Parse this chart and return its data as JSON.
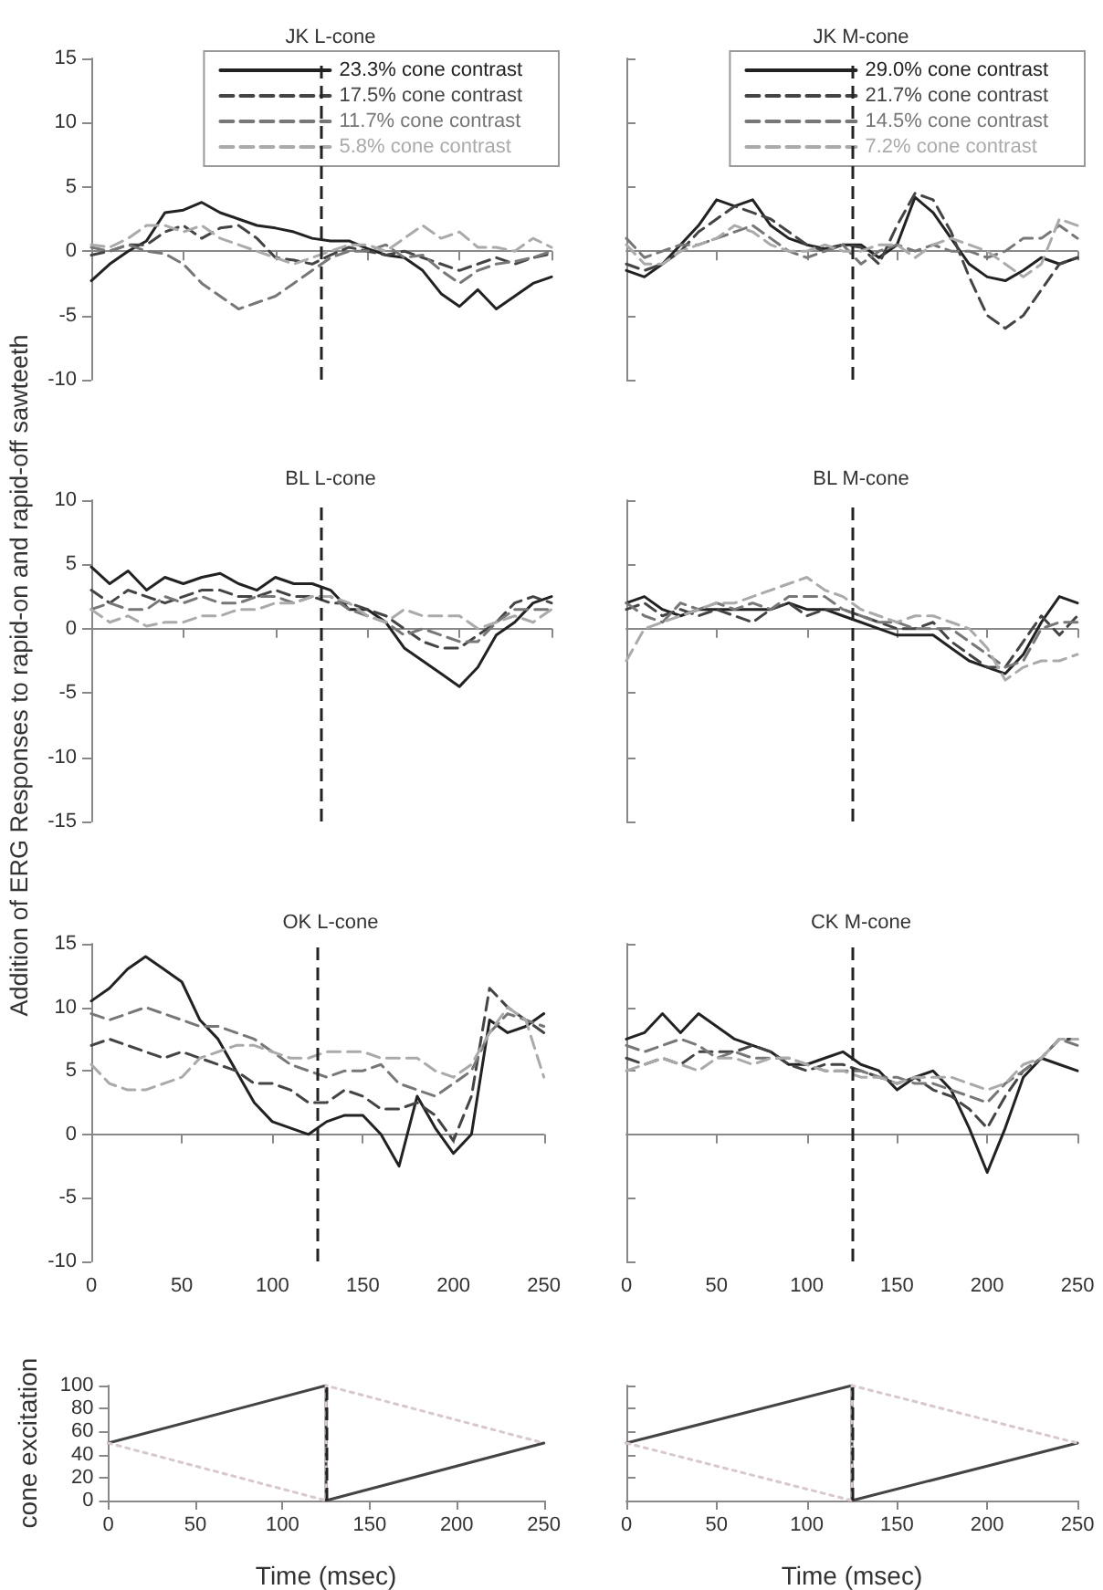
{
  "chart_data": [
    {
      "type": "line",
      "title": "JK L-cone",
      "x": [
        0,
        10,
        20,
        30,
        40,
        50,
        60,
        70,
        80,
        90,
        100,
        110,
        120,
        130,
        140,
        150,
        160,
        170,
        180,
        190,
        200,
        210,
        220,
        230,
        240,
        250
      ],
      "xlim": [
        0,
        250
      ],
      "xticks": [
        0,
        50,
        100,
        150,
        200,
        250
      ],
      "ylim": [
        -10,
        15
      ],
      "yticks": [
        -10,
        -5,
        0,
        5,
        10,
        15
      ],
      "tick_labels": "y",
      "legend": "top right",
      "marker": "none",
      "ref_lines": [
        {
          "axis": "x",
          "value": 125,
          "line_style": "dashed",
          "color": "#222222"
        }
      ],
      "series": [
        {
          "name": "23.3% cone contrast",
          "color": "#222222",
          "line_style": "solid",
          "values": [
            -2.3,
            -1,
            0,
            0.8,
            3,
            3.2,
            3.8,
            3,
            2.5,
            2,
            1.8,
            1.5,
            1,
            0.8,
            0.8,
            0.2,
            -0.3,
            -0.5,
            -1.5,
            -3.3,
            -4.3,
            -3,
            -4.5,
            -3.5,
            -2.5,
            -2
          ]
        },
        {
          "name": "17.5% cone contrast",
          "color": "#444444",
          "line_style": "dashed",
          "values": [
            -0.3,
            0,
            0.5,
            0.5,
            1.5,
            2,
            1,
            1.8,
            2,
            1,
            -0.5,
            -0.7,
            -1,
            -0.3,
            0.3,
            0,
            -0.3,
            0,
            -0.5,
            -1,
            -1.5,
            -1,
            -0.5,
            -1,
            -0.5,
            -0.2
          ]
        },
        {
          "name": "11.7% cone contrast",
          "color": "#777777",
          "line_style": "dashed",
          "values": [
            0.3,
            0,
            0.5,
            0,
            -0.2,
            -1,
            -2.5,
            -3.5,
            -4.5,
            -4,
            -3.5,
            -2.5,
            -1.5,
            -0.5,
            0,
            0,
            0.5,
            -0.5,
            -0.3,
            -1.5,
            -2.5,
            -1.5,
            -1,
            -0.8,
            -0.5,
            0
          ]
        },
        {
          "name": "5.8% cone contrast",
          "color": "#aaaaaa",
          "line_style": "dashed",
          "values": [
            0.5,
            0.3,
            1,
            2,
            2,
            1.5,
            2,
            1,
            0.5,
            0,
            -0.5,
            -1,
            -0.5,
            0,
            0.5,
            0.5,
            0,
            1,
            2,
            1,
            1.5,
            0.3,
            0.3,
            0,
            1,
            0.3
          ]
        }
      ]
    },
    {
      "type": "line",
      "title": "JK M-cone",
      "x": [
        0,
        10,
        20,
        30,
        40,
        50,
        60,
        70,
        80,
        90,
        100,
        110,
        120,
        130,
        140,
        150,
        160,
        170,
        180,
        190,
        200,
        210,
        220,
        230,
        240,
        250
      ],
      "xlim": [
        0,
        250
      ],
      "xticks": [
        0,
        50,
        100,
        150,
        200,
        250
      ],
      "ylim": [
        -10,
        15
      ],
      "yticks": [
        -10,
        -5,
        0,
        5,
        10,
        15
      ],
      "tick_labels": false,
      "legend": "top right",
      "marker": "none",
      "ref_lines": [
        {
          "axis": "x",
          "value": 125,
          "line_style": "dashed",
          "color": "#222222"
        }
      ],
      "series": [
        {
          "name": "29.0% cone contrast",
          "color": "#222222",
          "line_style": "solid",
          "values": [
            -1.5,
            -2,
            -1,
            0.5,
            2,
            4,
            3.5,
            4,
            2,
            1,
            0.5,
            0.2,
            0.5,
            0.5,
            -0.5,
            0.5,
            4.2,
            3,
            1,
            -1,
            -2,
            -2.3,
            -1.5,
            -0.5,
            -1,
            -0.5
          ]
        },
        {
          "name": "21.7% cone contrast",
          "color": "#444444",
          "line_style": "dashed",
          "values": [
            -1,
            -1.5,
            -1,
            0,
            1.5,
            2.5,
            3.5,
            3,
            2.5,
            1.5,
            0.5,
            0,
            0.5,
            0.3,
            -1,
            2,
            4.5,
            4,
            1.5,
            -2,
            -5,
            -6,
            -5,
            -3,
            -1,
            -0.5
          ]
        },
        {
          "name": "14.5% cone contrast",
          "color": "#777777",
          "line_style": "dashed",
          "values": [
            1,
            -0.5,
            0,
            0.5,
            0.5,
            1,
            1.5,
            2,
            1,
            0,
            -0.5,
            0,
            0.5,
            -1,
            0,
            0.5,
            0,
            0.5,
            0,
            0,
            -0.5,
            0,
            1,
            1,
            2,
            1
          ]
        },
        {
          "name": "7.2% cone contrast",
          "color": "#aaaaaa",
          "line_style": "dashed",
          "values": [
            0.5,
            -1,
            -1,
            0,
            0.5,
            1,
            2,
            1.5,
            0.5,
            0,
            0,
            0.5,
            0,
            0,
            0.5,
            0.5,
            -0.5,
            0.5,
            1,
            0.5,
            0,
            -1,
            -2,
            -1,
            2.5,
            2
          ]
        }
      ]
    },
    {
      "type": "line",
      "title": "BL L-cone",
      "ylabel": "Addition of ERG Responses to rapid-on and rapid-off sawteeth",
      "x": [
        0,
        10,
        20,
        30,
        40,
        50,
        60,
        70,
        80,
        90,
        100,
        110,
        120,
        130,
        140,
        150,
        160,
        170,
        180,
        190,
        200,
        210,
        220,
        230,
        240,
        250
      ],
      "xlim": [
        0,
        250
      ],
      "xticks": [
        0,
        50,
        100,
        150,
        200,
        250
      ],
      "ylim": [
        -15,
        10
      ],
      "yticks": [
        -15,
        -10,
        -5,
        0,
        5,
        10
      ],
      "tick_labels": "y",
      "marker": "none",
      "ref_lines": [
        {
          "axis": "x",
          "value": 125,
          "line_style": "dashed",
          "color": "#222222"
        }
      ],
      "series": [
        {
          "color": "#222222",
          "line_style": "solid",
          "values": [
            4.8,
            3.5,
            4.5,
            3,
            4,
            3.5,
            4,
            4.3,
            3.5,
            3,
            4,
            3.5,
            3.5,
            3,
            1.5,
            1.5,
            0.5,
            -1.5,
            -2.5,
            -3.5,
            -4.5,
            -3,
            -0.5,
            0.5,
            2,
            2.5
          ]
        },
        {
          "color": "#444444",
          "line_style": "dashed",
          "values": [
            3,
            2,
            3,
            2.5,
            2,
            2.5,
            3,
            3,
            2.5,
            2.5,
            3,
            2.5,
            2.5,
            2,
            2,
            1.5,
            1,
            0,
            -1,
            -1.5,
            -1.5,
            -0.5,
            0.5,
            2,
            2.5,
            2
          ]
        },
        {
          "color": "#777777",
          "line_style": "dashed",
          "values": [
            1.5,
            2,
            1.5,
            1.5,
            2.5,
            2,
            2.5,
            2,
            2,
            2.5,
            2.5,
            2,
            2.5,
            2.5,
            1.5,
            1,
            0.5,
            -0.5,
            0,
            -0.5,
            -1,
            -1,
            0.5,
            1.5,
            1.5,
            1.5
          ]
        },
        {
          "color": "#aaaaaa",
          "line_style": "dashed",
          "values": [
            1.5,
            0.5,
            1,
            0.2,
            0.5,
            0.5,
            1,
            1,
            1.5,
            1.5,
            2,
            2,
            2.5,
            2.5,
            2,
            1,
            0.5,
            1.5,
            1,
            1,
            1,
            0,
            0.5,
            1,
            0.5,
            1.5
          ]
        }
      ]
    },
    {
      "type": "line",
      "title": "BL M-cone",
      "x": [
        0,
        10,
        20,
        30,
        40,
        50,
        60,
        70,
        80,
        90,
        100,
        110,
        120,
        130,
        140,
        150,
        160,
        170,
        180,
        190,
        200,
        210,
        220,
        230,
        240,
        250
      ],
      "xlim": [
        0,
        250
      ],
      "xticks": [
        0,
        50,
        100,
        150,
        200,
        250
      ],
      "ylim": [
        -15,
        10
      ],
      "yticks": [
        -15,
        -10,
        -5,
        0,
        5,
        10
      ],
      "tick_labels": false,
      "marker": "none",
      "ref_lines": [
        {
          "axis": "x",
          "value": 125,
          "line_style": "dashed",
          "color": "#222222"
        }
      ],
      "series": [
        {
          "color": "#222222",
          "line_style": "solid",
          "values": [
            2,
            2.5,
            1.5,
            1,
            1.5,
            1.5,
            1.5,
            1.5,
            1.5,
            2,
            1.5,
            1.5,
            1,
            0.5,
            0,
            -0.5,
            -0.5,
            -0.5,
            -1.5,
            -2.5,
            -3,
            -3.5,
            -2,
            0.5,
            2.5,
            2
          ]
        },
        {
          "color": "#444444",
          "line_style": "dashed",
          "values": [
            1.5,
            2,
            1,
            1.5,
            1,
            1.5,
            1,
            0.5,
            1.5,
            2,
            1,
            1.5,
            1.5,
            1,
            0.5,
            0,
            0,
            0.5,
            -1,
            -2,
            -3,
            -3,
            -1,
            1,
            -0.5,
            1
          ]
        },
        {
          "color": "#777777",
          "line_style": "dashed",
          "values": [
            2,
            1,
            0.5,
            2,
            1.5,
            2,
            1.5,
            2,
            1.5,
            2.5,
            2.5,
            2.5,
            1.5,
            1,
            0.5,
            0.5,
            0,
            0,
            0,
            -1,
            -2,
            -3,
            -2.5,
            0,
            0.5,
            0.5
          ]
        },
        {
          "color": "#aaaaaa",
          "line_style": "dashed",
          "values": [
            -2.5,
            0,
            0.5,
            1,
            1.5,
            2,
            2,
            2.5,
            3,
            3.5,
            4,
            3,
            2.5,
            1.5,
            1,
            0.5,
            1,
            1,
            0.5,
            0,
            -1.5,
            -4,
            -3,
            -2.5,
            -2.5,
            -2
          ]
        }
      ]
    },
    {
      "type": "line",
      "title": "OK L-cone",
      "x": [
        0,
        10,
        20,
        30,
        40,
        50,
        60,
        70,
        80,
        90,
        100,
        110,
        120,
        130,
        140,
        150,
        160,
        170,
        180,
        190,
        200,
        210,
        220,
        230,
        240,
        250
      ],
      "xlim": [
        0,
        250
      ],
      "xticks": [
        0,
        50,
        100,
        150,
        200,
        250
      ],
      "ylim": [
        -10,
        15
      ],
      "yticks": [
        -10,
        -5,
        0,
        5,
        10,
        15
      ],
      "marker": "none",
      "ref_lines": [
        {
          "axis": "x",
          "value": 125,
          "line_style": "dashed",
          "color": "#222222"
        }
      ],
      "series": [
        {
          "color": "#222222",
          "line_style": "solid",
          "values": [
            10.5,
            11.5,
            13,
            14,
            13,
            12,
            9,
            7.5,
            5,
            2.5,
            1,
            0.5,
            0,
            1,
            1.5,
            1.5,
            0,
            -2.5,
            3,
            0.5,
            -1.5,
            0,
            9,
            8,
            8.5,
            9.5
          ]
        },
        {
          "color": "#444444",
          "line_style": "dashed",
          "values": [
            7,
            7.5,
            7,
            6.5,
            6,
            6.5,
            6,
            5.5,
            5,
            4,
            4,
            3.5,
            2.5,
            2.5,
            3.5,
            3,
            2,
            2,
            2.5,
            1.5,
            -0.5,
            3,
            11.5,
            10,
            9,
            8
          ]
        },
        {
          "color": "#777777",
          "line_style": "dashed",
          "values": [
            9.5,
            9,
            9.5,
            10,
            9.5,
            9,
            8.5,
            8.5,
            8,
            7.5,
            6.5,
            5.5,
            5,
            4.5,
            5,
            5,
            5.5,
            4,
            3.5,
            3,
            4,
            5,
            8,
            9.5,
            9,
            8.5
          ]
        },
        {
          "color": "#aaaaaa",
          "line_style": "dashed",
          "values": [
            5.5,
            4,
            3.5,
            3.5,
            4,
            4.5,
            6,
            6.5,
            7,
            7,
            6.5,
            6,
            6,
            6.5,
            6.5,
            6.5,
            6,
            6,
            6,
            5,
            4.5,
            5.5,
            8,
            10,
            9,
            4.5
          ]
        }
      ]
    },
    {
      "type": "line",
      "title": "CK M-cone",
      "x": [
        0,
        10,
        20,
        30,
        40,
        50,
        60,
        70,
        80,
        90,
        100,
        110,
        120,
        130,
        140,
        150,
        160,
        170,
        180,
        190,
        200,
        210,
        220,
        230,
        240,
        250
      ],
      "xlim": [
        0,
        250
      ],
      "xticks": [
        0,
        50,
        100,
        150,
        200,
        250
      ],
      "ylim": [
        -10,
        15
      ],
      "yticks": [
        -10,
        -5,
        0,
        5,
        10,
        15
      ],
      "tick_labels": "x",
      "marker": "none",
      "ref_lines": [
        {
          "axis": "x",
          "value": 125,
          "line_style": "dashed",
          "color": "#222222"
        }
      ],
      "series": [
        {
          "color": "#222222",
          "line_style": "solid",
          "values": [
            7.5,
            8,
            9.5,
            8,
            9.5,
            8.5,
            7.5,
            7,
            6.5,
            5.5,
            5.5,
            6,
            6.5,
            5.5,
            5,
            3.5,
            4.5,
            5,
            3.5,
            0.5,
            -3,
            0.5,
            4.5,
            6,
            5.5,
            5
          ]
        },
        {
          "color": "#444444",
          "line_style": "dashed",
          "values": [
            6,
            5.5,
            6,
            5.5,
            6.5,
            6.5,
            6.5,
            7,
            6.5,
            5.5,
            5,
            5.5,
            5.5,
            5,
            4.5,
            4,
            4.5,
            3.5,
            3,
            2,
            0.5,
            3,
            5,
            6,
            7.5,
            7.5
          ]
        },
        {
          "color": "#777777",
          "line_style": "dashed",
          "values": [
            7,
            6.5,
            7,
            7.5,
            7,
            6,
            6.5,
            6,
            6,
            6,
            5.5,
            5,
            5,
            5,
            4.5,
            4.5,
            4,
            4,
            3.5,
            3,
            2.5,
            4,
            5,
            6,
            7.5,
            7
          ]
        },
        {
          "color": "#aaaaaa",
          "line_style": "dashed",
          "values": [
            5,
            5.5,
            6,
            5.5,
            5,
            6,
            6,
            5.5,
            6,
            6,
            5.5,
            5,
            5,
            4.5,
            4.5,
            4,
            4.5,
            4.5,
            4.5,
            4,
            3.5,
            4,
            5.5,
            6,
            7.5,
            7.5
          ]
        }
      ]
    },
    {
      "type": "line",
      "xlabel": "Time (msec)",
      "ylabel": "cone excitation",
      "xlim": [
        0,
        250
      ],
      "xticks": [
        0,
        50,
        100,
        150,
        200,
        250
      ],
      "ylim": [
        0,
        100
      ],
      "yticks": [
        0,
        20,
        40,
        60,
        80,
        100
      ],
      "marker": "none",
      "ref_lines": [
        {
          "axis": "x",
          "value": 125,
          "line_style": "dashed",
          "color": "#222222"
        }
      ],
      "series": [
        {
          "color": "#444444",
          "line_style": "solid",
          "x": [
            0,
            125,
            125,
            250
          ],
          "values": [
            50,
            100,
            0,
            50
          ]
        },
        {
          "color": "#d8c8cc",
          "line_style": "dotted",
          "x": [
            0,
            125,
            125,
            250
          ],
          "values": [
            50,
            0,
            100,
            50
          ]
        }
      ]
    },
    {
      "type": "line",
      "xlabel": "Time (msec)",
      "xlim": [
        0,
        250
      ],
      "xticks": [
        0,
        50,
        100,
        150,
        200,
        250
      ],
      "ylim": [
        0,
        100
      ],
      "yticks": [
        0,
        20,
        40,
        60,
        80,
        100
      ],
      "tick_labels": "x",
      "marker": "none",
      "ref_lines": [
        {
          "axis": "x",
          "value": 125,
          "line_style": "dashed",
          "color": "#222222"
        }
      ],
      "series": [
        {
          "color": "#444444",
          "line_style": "solid",
          "x": [
            0,
            125,
            125,
            250
          ],
          "values": [
            50,
            100,
            0,
            50
          ]
        },
        {
          "color": "#d8c8cc",
          "line_style": "dotted",
          "x": [
            0,
            125,
            125,
            250
          ],
          "values": [
            50,
            0,
            100,
            50
          ]
        }
      ]
    }
  ]
}
